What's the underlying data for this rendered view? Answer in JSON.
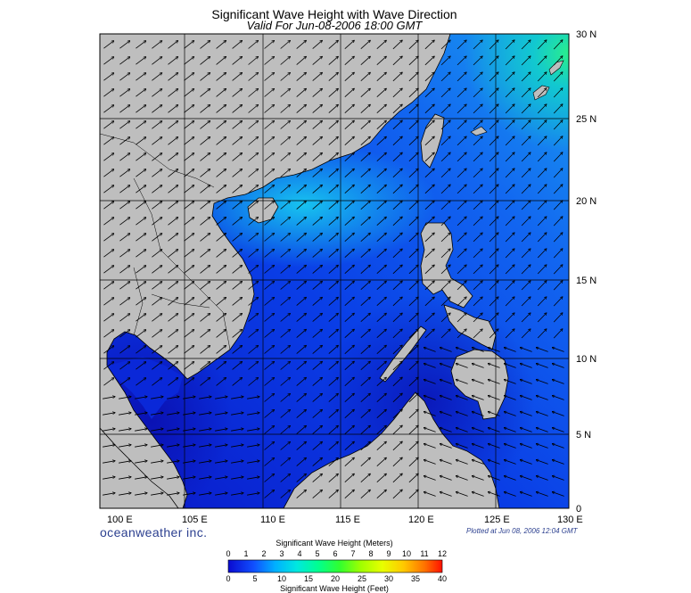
{
  "title": "Significant Wave Height with Wave Direction",
  "subtitle": "Valid For Jun-08-2006 18:00 GMT",
  "brand": "oceanweather inc.",
  "plotted": "Plotted at Jun 08, 2006 12:04 GMT",
  "lon_labels": [
    "100 E",
    "105 E",
    "110 E",
    "115 E",
    "120 E",
    "125 E",
    "130 E"
  ],
  "lat_labels": [
    "30 N",
    "25 N",
    "20 N",
    "15 N",
    "10 N",
    "5 N",
    "0"
  ],
  "legend": {
    "meters_title": "Significant Wave Height (Meters)",
    "feet_title": "Significant Wave Height (Feet)",
    "meters": [
      "0",
      "1",
      "2",
      "3",
      "4",
      "5",
      "6",
      "7",
      "8",
      "9",
      "10",
      "11",
      "12"
    ],
    "feet": [
      "0",
      "5",
      "10",
      "15",
      "20",
      "25",
      "30",
      "35",
      "40"
    ]
  },
  "colors": {
    "land": "#bebebe",
    "ocean_low": "#0a14c8",
    "ocean_mid": "#1e78ff",
    "ocean_high": "#21f0a0"
  }
}
